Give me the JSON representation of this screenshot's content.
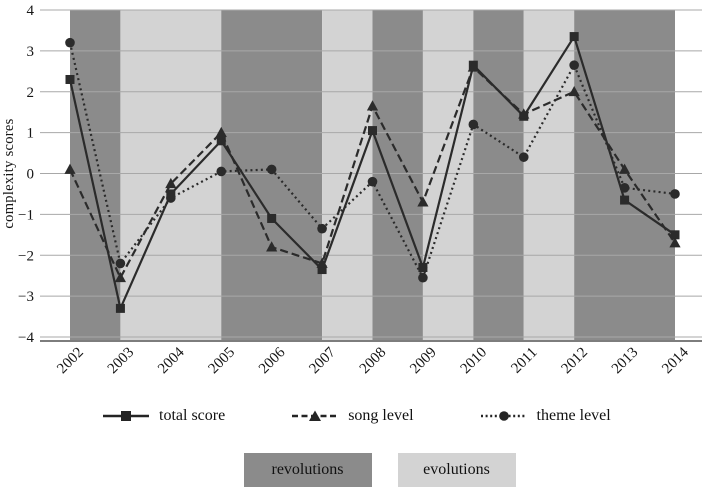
{
  "figure": {
    "ylabel": "complexity scores",
    "legend": [
      {
        "id": "total-score",
        "label": "total score",
        "marker": "square",
        "line": "solid"
      },
      {
        "id": "song-level",
        "label": "song level",
        "marker": "triangle",
        "line": "dashed"
      },
      {
        "id": "theme-level",
        "label": "theme level",
        "marker": "circle",
        "line": "dotted"
      }
    ],
    "band_legend": [
      {
        "id": "revolutions",
        "label": "revolutions"
      },
      {
        "id": "evolutions",
        "label": "evolutions"
      }
    ]
  },
  "chart_data": {
    "type": "line",
    "title": "",
    "xlabel": "",
    "ylabel": "complexity scores",
    "ylim": [
      -4,
      4
    ],
    "yticks": [
      4,
      3,
      2,
      1,
      0,
      -1,
      -2,
      -3,
      -4
    ],
    "grid": "horizontal",
    "legend_position": "bottom",
    "categories": [
      "2002",
      "2003",
      "2004",
      "2005",
      "2006",
      "2007",
      "2008",
      "2009",
      "2010",
      "2011",
      "2012",
      "2013",
      "2014"
    ],
    "series": [
      {
        "name": "total score",
        "marker": "square",
        "line": "solid",
        "values": [
          2.3,
          -3.3,
          -0.5,
          0.8,
          -1.1,
          -2.35,
          1.05,
          -2.3,
          2.65,
          1.4,
          3.35,
          -0.65,
          -1.5
        ]
      },
      {
        "name": "song level",
        "marker": "triangle",
        "line": "dashed",
        "values": [
          0.1,
          -2.55,
          -0.25,
          1.0,
          -1.8,
          -2.2,
          1.65,
          -0.7,
          2.6,
          1.45,
          2.0,
          0.1,
          -1.7
        ]
      },
      {
        "name": "theme level",
        "marker": "circle",
        "line": "dotted",
        "values": [
          3.2,
          -2.2,
          -0.6,
          0.05,
          0.1,
          -1.35,
          -0.2,
          -2.55,
          1.2,
          0.4,
          2.65,
          -0.35,
          -0.5
        ]
      }
    ],
    "background_bands": [
      {
        "from": "2002",
        "to": "2003",
        "type": "revolutions"
      },
      {
        "from": "2003",
        "to": "2005",
        "type": "evolutions"
      },
      {
        "from": "2005",
        "to": "2007",
        "type": "revolutions"
      },
      {
        "from": "2007",
        "to": "2008",
        "type": "evolutions"
      },
      {
        "from": "2008",
        "to": "2009",
        "type": "revolutions"
      },
      {
        "from": "2009",
        "to": "2010",
        "type": "evolutions"
      },
      {
        "from": "2010",
        "to": "2011",
        "type": "revolutions"
      },
      {
        "from": "2011",
        "to": "2012",
        "type": "evolutions"
      },
      {
        "from": "2012",
        "to": "2014",
        "type": "revolutions"
      }
    ],
    "colors": {
      "revolutions": "#8b8b8b",
      "evolutions": "#d3d3d3",
      "line": "#2b2b2b",
      "grid": "#a8a8a8",
      "axis": "#7d7d7d"
    }
  }
}
